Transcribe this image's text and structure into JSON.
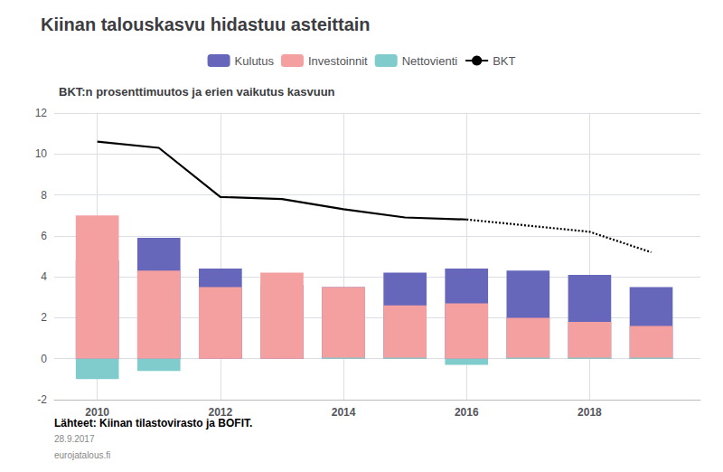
{
  "chart_data": {
    "type": "bar",
    "title": "Kiinan talouskasvu hidastuu asteittain",
    "subtitle": "BKT:n prosenttimuutos ja erien vaikutus kasvuun",
    "annotations": [
      "Lähteet: Kiinan tilastovirasto ja BOFIT.",
      "28.9.2017",
      "eurojatalous.fi"
    ],
    "x": [
      2010,
      2011,
      2012,
      2013,
      2014,
      2015,
      2016,
      2017,
      2018,
      2019
    ],
    "xlim": [
      2009.3,
      2019.8
    ],
    "xticks": [
      2010,
      2012,
      2014,
      2016,
      2018
    ],
    "ylim": [
      -2,
      12
    ],
    "yticks": [
      -2,
      0,
      2,
      4,
      6,
      8,
      10,
      12
    ],
    "grid": true,
    "legend": "top",
    "series": [
      {
        "name": "Kulutus",
        "type": "bar",
        "stacked": true,
        "color": "#6666bb",
        "values": [
          4.8,
          5.9,
          4.4,
          3.6,
          3.5,
          4.2,
          4.4,
          4.3,
          4.1,
          3.5
        ]
      },
      {
        "name": "Investoinnit",
        "type": "bar",
        "stacked": true,
        "color": "#f4a0a0",
        "values": [
          7.0,
          4.3,
          3.5,
          4.2,
          3.5,
          2.6,
          2.7,
          2.0,
          1.8,
          1.6
        ]
      },
      {
        "name": "Nettovienti",
        "type": "bar",
        "color": "#80cccc",
        "values": [
          -1.0,
          -0.6,
          0.0,
          0.0,
          0.05,
          0.05,
          -0.3,
          0.05,
          0.05,
          0.05
        ]
      },
      {
        "name": "BKT",
        "type": "line",
        "line_style": "solid",
        "color": "#000000",
        "values": [
          10.6,
          10.3,
          7.9,
          7.8,
          7.3,
          6.9,
          6.8,
          null,
          null,
          null
        ]
      },
      {
        "name": "BKT",
        "type": "line",
        "line_style": "dotted",
        "color": "#000000",
        "values": [
          null,
          null,
          null,
          null,
          null,
          null,
          6.8,
          6.5,
          6.2,
          5.2
        ]
      }
    ]
  }
}
